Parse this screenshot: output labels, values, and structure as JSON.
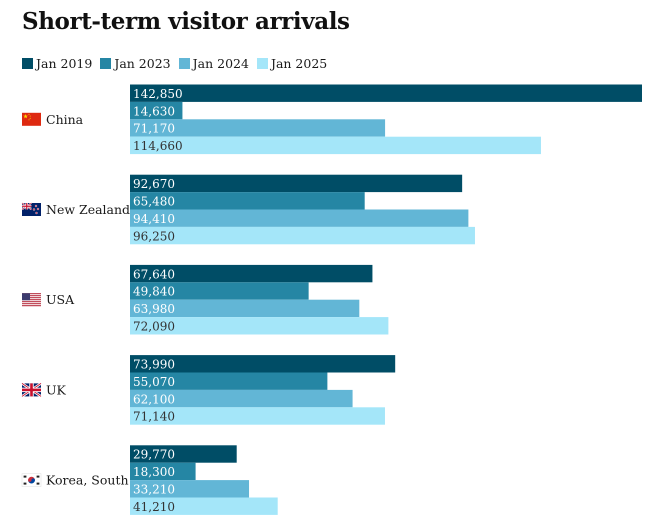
{
  "chart_data": {
    "type": "bar",
    "orientation": "horizontal",
    "title": "Short-term visitor arrivals",
    "categories": [
      "China",
      "New Zealand",
      "USA",
      "UK",
      "Korea, South"
    ],
    "category_icons": [
      "flag-china-icon",
      "flag-new-zealand-icon",
      "flag-usa-icon",
      "flag-uk-icon",
      "flag-south-korea-icon"
    ],
    "series": [
      {
        "name": "Jan 2019",
        "color": "#004d66",
        "values": [
          142850,
          92670,
          67640,
          73990,
          29770
        ],
        "labels": [
          "142,850",
          "92,670",
          "67,640",
          "73,990",
          "29,770"
        ]
      },
      {
        "name": "Jan 2023",
        "color": "#2586a4",
        "values": [
          14630,
          65480,
          49840,
          55070,
          18300
        ],
        "labels": [
          "14,630",
          "65,480",
          "49,840",
          "55,070",
          "18,300"
        ]
      },
      {
        "name": "Jan 2024",
        "color": "#62b6d6",
        "values": [
          71170,
          94410,
          63980,
          62100,
          33210
        ],
        "labels": [
          "71,170",
          "94,410",
          "63,980",
          "62,100",
          "33,210"
        ]
      },
      {
        "name": "Jan 2025",
        "color": "#a4e6f9",
        "values": [
          114660,
          96250,
          72090,
          71140,
          41210
        ],
        "labels": [
          "114,660",
          "96,250",
          "72,090",
          "71,140",
          "41,210"
        ]
      }
    ],
    "xlim": [
      0,
      142850
    ],
    "grid": false,
    "legend_position": "top-left"
  }
}
